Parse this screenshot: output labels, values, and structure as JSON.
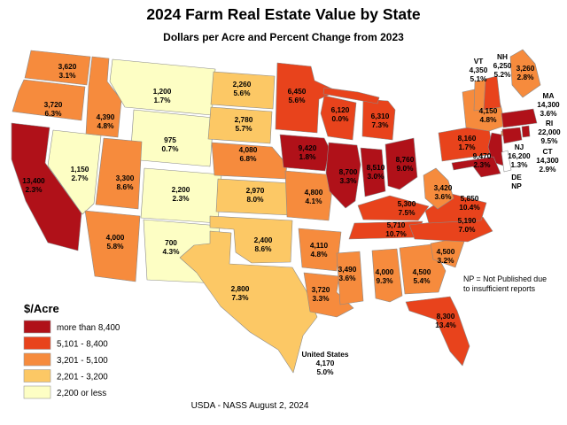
{
  "title": "2024 Farm Real Estate Value by State",
  "subtitle": "Dollars per Acre and Percent Change from 2023",
  "footer": "USDA - NASS August 2, 2024",
  "chart_data": {
    "type": "heatmap",
    "subtype": "us-state-choropleth",
    "title": "2024 Farm Real Estate Value by State",
    "subtitle": "Dollars per Acre and Percent Change from 2023",
    "unit_label": "$/Acre",
    "legend_position": "bottom-left",
    "legend": [
      {
        "label": "more than 8,400",
        "color": "#B01119"
      },
      {
        "label": "5,101 - 8,400",
        "color": "#E8431C"
      },
      {
        "label": "3,201 - 5,100",
        "color": "#F68B3D"
      },
      {
        "label": "2,201 - 3,200",
        "color": "#FCC865"
      },
      {
        "label": "2,200 or less",
        "color": "#FDFEC4"
      }
    ],
    "np_color": "#FFFFFF",
    "np_note_line1": "NP = Not Published due",
    "np_note_line2": "to insufficient reports",
    "us_total": {
      "label": "United States",
      "value": "4,170",
      "change": "5.0%"
    },
    "states": [
      {
        "abbr": "WA",
        "name": "Washington",
        "value": "3,620",
        "change": "3.1%",
        "category": 2
      },
      {
        "abbr": "OR",
        "name": "Oregon",
        "value": "3,720",
        "change": "6.3%",
        "category": 2
      },
      {
        "abbr": "CA",
        "name": "California",
        "value": "13,400",
        "change": "2.3%",
        "category": 0
      },
      {
        "abbr": "NV",
        "name": "Nevada",
        "value": "1,150",
        "change": "2.7%",
        "category": 4
      },
      {
        "abbr": "ID",
        "name": "Idaho",
        "value": "4,390",
        "change": "4.8%",
        "category": 2
      },
      {
        "abbr": "MT",
        "name": "Montana",
        "value": "1,200",
        "change": "1.7%",
        "category": 4
      },
      {
        "abbr": "WY",
        "name": "Wyoming",
        "value": "975",
        "change": "0.7%",
        "category": 4
      },
      {
        "abbr": "UT",
        "name": "Utah",
        "value": "3,300",
        "change": "8.6%",
        "category": 2
      },
      {
        "abbr": "CO",
        "name": "Colorado",
        "value": "2,200",
        "change": "2.3%",
        "category": 4
      },
      {
        "abbr": "AZ",
        "name": "Arizona",
        "value": "4,000",
        "change": "5.8%",
        "category": 2
      },
      {
        "abbr": "NM",
        "name": "New Mexico",
        "value": "700",
        "change": "4.3%",
        "category": 4
      },
      {
        "abbr": "ND",
        "name": "North Dakota",
        "value": "2,260",
        "change": "5.6%",
        "category": 3
      },
      {
        "abbr": "SD",
        "name": "South Dakota",
        "value": "2,780",
        "change": "5.7%",
        "category": 3
      },
      {
        "abbr": "NE",
        "name": "Nebraska",
        "value": "4,080",
        "change": "6.8%",
        "category": 2
      },
      {
        "abbr": "KS",
        "name": "Kansas",
        "value": "2,970",
        "change": "8.0%",
        "category": 3
      },
      {
        "abbr": "OK",
        "name": "Oklahoma",
        "value": "2,400",
        "change": "8.6%",
        "category": 3
      },
      {
        "abbr": "TX",
        "name": "Texas",
        "value": "2,800",
        "change": "7.3%",
        "category": 3
      },
      {
        "abbr": "MN",
        "name": "Minnesota",
        "value": "6,450",
        "change": "5.6%",
        "category": 1
      },
      {
        "abbr": "IA",
        "name": "Iowa",
        "value": "9,420",
        "change": "1.8%",
        "category": 0
      },
      {
        "abbr": "MO",
        "name": "Missouri",
        "value": "4,800",
        "change": "4.1%",
        "category": 2
      },
      {
        "abbr": "AR",
        "name": "Arkansas",
        "value": "4,110",
        "change": "4.8%",
        "category": 2
      },
      {
        "abbr": "LA",
        "name": "Louisiana",
        "value": "3,720",
        "change": "3.3%",
        "category": 2
      },
      {
        "abbr": "WI",
        "name": "Wisconsin",
        "value": "6,120",
        "change": "0.0%",
        "category": 1
      },
      {
        "abbr": "MI",
        "name": "Michigan",
        "value": "6,310",
        "change": "7.3%",
        "category": 1
      },
      {
        "abbr": "IL",
        "name": "Illinois",
        "value": "8,700",
        "change": "3.3%",
        "category": 0
      },
      {
        "abbr": "IN",
        "name": "Indiana",
        "value": "8,510",
        "change": "3.0%",
        "category": 0
      },
      {
        "abbr": "OH",
        "name": "Ohio",
        "value": "8,760",
        "change": "9.0%",
        "category": 0
      },
      {
        "abbr": "KY",
        "name": "Kentucky",
        "value": "5,300",
        "change": "7.5%",
        "category": 1
      },
      {
        "abbr": "TN",
        "name": "Tennessee",
        "value": "5,710",
        "change": "10.7%",
        "category": 1
      },
      {
        "abbr": "MS",
        "name": "Mississippi",
        "value": "3,490",
        "change": "3.6%",
        "category": 2
      },
      {
        "abbr": "AL",
        "name": "Alabama",
        "value": "4,000",
        "change": "9.3%",
        "category": 2
      },
      {
        "abbr": "GA",
        "name": "Georgia",
        "value": "4,500",
        "change": "5.4%",
        "category": 2
      },
      {
        "abbr": "SC",
        "name": "South Carolina",
        "value": "4,500",
        "change": "3.2%",
        "category": 2
      },
      {
        "abbr": "NC",
        "name": "North Carolina",
        "value": "5,190",
        "change": "7.0%",
        "category": 1
      },
      {
        "abbr": "VA",
        "name": "Virginia",
        "value": "5,850",
        "change": "10.4%",
        "category": 1
      },
      {
        "abbr": "WV",
        "name": "West Virginia",
        "value": "3,420",
        "change": "3.6%",
        "category": 2
      },
      {
        "abbr": "FL",
        "name": "Florida",
        "value": "8,300",
        "change": "13.4%",
        "category": 1
      },
      {
        "abbr": "PA",
        "name": "Pennsylvania",
        "value": "8,160",
        "change": "1.7%",
        "category": 1
      },
      {
        "abbr": "NY",
        "name": "New York",
        "value": "4,150",
        "change": "4.8%",
        "category": 2
      },
      {
        "abbr": "VT",
        "name": "Vermont",
        "value": "4,350",
        "change": "5.1%",
        "category": 2
      },
      {
        "abbr": "NH",
        "name": "New Hampshire",
        "value": "6,250",
        "change": "5.2%",
        "category": 1
      },
      {
        "abbr": "ME",
        "name": "Maine",
        "value": "3,260",
        "change": "2.8%",
        "category": 2
      },
      {
        "abbr": "MA",
        "name": "Massachusetts",
        "value": "14,300",
        "change": "3.6%",
        "category": 0
      },
      {
        "abbr": "RI",
        "name": "Rhode Island",
        "value": "22,000",
        "change": "9.5%",
        "category": 0
      },
      {
        "abbr": "CT",
        "name": "Connecticut",
        "value": "14,300",
        "change": "2.9%",
        "category": 0
      },
      {
        "abbr": "NJ",
        "name": "New Jersey",
        "value": "16,200",
        "change": "1.3%",
        "category": 0
      },
      {
        "abbr": "DE",
        "name": "Delaware",
        "value": "NP",
        "change": null,
        "category": null
      },
      {
        "abbr": "MD",
        "name": "Maryland",
        "value": "9,470",
        "change": "2.3%",
        "category": 0
      }
    ]
  }
}
